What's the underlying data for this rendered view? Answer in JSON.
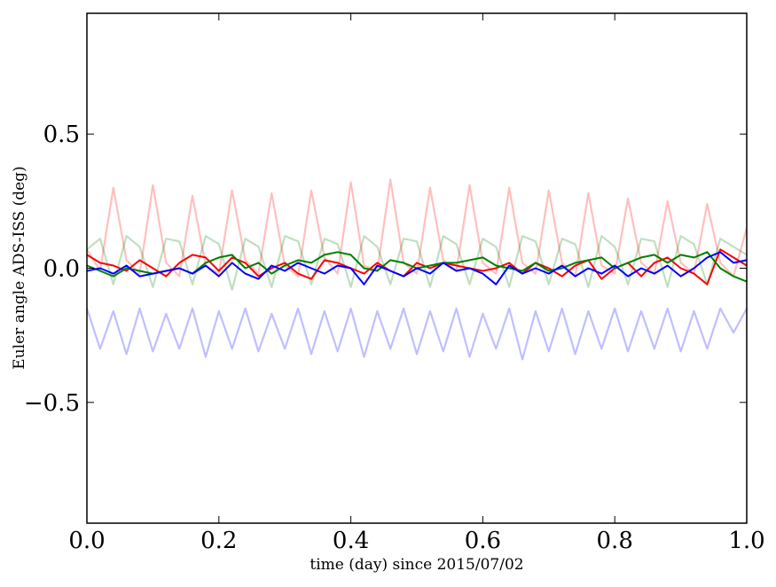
{
  "chart_data": {
    "type": "line",
    "title": "",
    "xlabel": "time (day) since 2015/07/02",
    "ylabel": "Euler angle ADS-ISS (deg)",
    "xlim": [
      0.0,
      1.0
    ],
    "ylim": [
      -0.95,
      0.95
    ],
    "x_ticks": [
      0.0,
      0.2,
      0.4,
      0.6,
      0.8,
      1.0
    ],
    "x_tick_labels": [
      "0.0",
      "0.2",
      "0.4",
      "0.6",
      "0.8",
      "1.0"
    ],
    "y_ticks": [
      -0.5,
      0.0,
      0.5
    ],
    "y_tick_labels": [
      "−0.5",
      "0.0",
      "0.5"
    ],
    "grid": false,
    "legend": "none",
    "x": [
      0.0,
      0.02,
      0.04,
      0.06,
      0.08,
      0.1,
      0.12,
      0.14,
      0.16,
      0.18,
      0.2,
      0.22,
      0.24,
      0.26,
      0.28,
      0.3,
      0.32,
      0.34,
      0.36,
      0.38,
      0.4,
      0.42,
      0.44,
      0.46,
      0.48,
      0.5,
      0.52,
      0.54,
      0.56,
      0.58,
      0.6,
      0.62,
      0.64,
      0.66,
      0.68,
      0.7,
      0.72,
      0.74,
      0.76,
      0.78,
      0.8,
      0.82,
      0.84,
      0.86,
      0.88,
      0.9,
      0.92,
      0.94,
      0.96,
      0.98,
      1.0
    ],
    "series": [
      {
        "color": "#ff0000",
        "alpha": 0.25,
        "values": [
          0.07,
          -0.01,
          0.3,
          0.03,
          -0.02,
          0.31,
          0.02,
          -0.03,
          0.27,
          0.01,
          -0.02,
          0.29,
          0.03,
          -0.02,
          0.28,
          0.01,
          -0.03,
          0.29,
          0.04,
          -0.02,
          0.32,
          0.01,
          -0.01,
          0.33,
          0.02,
          -0.02,
          0.3,
          0.03,
          -0.01,
          0.31,
          0.02,
          -0.02,
          0.3,
          0.02,
          -0.02,
          0.29,
          0.02,
          -0.03,
          0.28,
          0.01,
          -0.02,
          0.26,
          0.02,
          -0.02,
          0.25,
          0.02,
          -0.02,
          0.24,
          0.02,
          -0.03,
          0.15
        ]
      },
      {
        "color": "#008000",
        "alpha": 0.25,
        "values": [
          0.07,
          0.11,
          -0.06,
          0.12,
          0.08,
          -0.07,
          0.11,
          0.1,
          -0.06,
          0.12,
          0.09,
          -0.08,
          0.11,
          0.08,
          -0.07,
          0.12,
          0.1,
          -0.06,
          0.11,
          0.09,
          -0.07,
          0.12,
          0.08,
          -0.06,
          0.11,
          0.1,
          -0.07,
          0.12,
          0.09,
          -0.06,
          0.11,
          0.08,
          -0.07,
          0.12,
          0.1,
          -0.06,
          0.11,
          0.09,
          -0.07,
          0.12,
          0.08,
          -0.06,
          0.11,
          0.1,
          -0.07,
          0.12,
          0.09,
          -0.06,
          0.11,
          0.08,
          0.05
        ]
      },
      {
        "color": "#0000ff",
        "alpha": 0.25,
        "values": [
          -0.15,
          -0.3,
          -0.16,
          -0.32,
          -0.15,
          -0.31,
          -0.17,
          -0.3,
          -0.15,
          -0.33,
          -0.16,
          -0.3,
          -0.15,
          -0.31,
          -0.17,
          -0.3,
          -0.15,
          -0.32,
          -0.16,
          -0.31,
          -0.15,
          -0.33,
          -0.16,
          -0.3,
          -0.15,
          -0.32,
          -0.16,
          -0.31,
          -0.15,
          -0.33,
          -0.17,
          -0.3,
          -0.15,
          -0.34,
          -0.16,
          -0.31,
          -0.15,
          -0.32,
          -0.16,
          -0.3,
          -0.15,
          -0.31,
          -0.16,
          -0.3,
          -0.15,
          -0.31,
          -0.16,
          -0.3,
          -0.15,
          -0.24,
          -0.15
        ]
      },
      {
        "color": "#ff0000",
        "alpha": 1.0,
        "values": [
          0.05,
          0.02,
          0.01,
          -0.01,
          0.03,
          0.0,
          -0.03,
          0.02,
          0.05,
          0.04,
          -0.01,
          0.04,
          0.02,
          -0.03,
          0.0,
          0.02,
          -0.02,
          -0.04,
          0.03,
          0.02,
          0.0,
          -0.02,
          0.02,
          -0.01,
          -0.03,
          0.02,
          0.0,
          0.02,
          0.01,
          0.0,
          -0.01,
          0.0,
          0.02,
          -0.02,
          0.02,
          0.0,
          -0.03,
          0.01,
          0.03,
          -0.04,
          0.0,
          0.02,
          -0.03,
          0.02,
          0.04,
          0.0,
          -0.02,
          -0.06,
          0.07,
          0.04,
          0.01
        ]
      },
      {
        "color": "#008000",
        "alpha": 1.0,
        "values": [
          0.01,
          -0.01,
          -0.03,
          0.0,
          -0.01,
          -0.02,
          -0.01,
          0.0,
          -0.02,
          0.02,
          0.04,
          0.05,
          0.0,
          0.02,
          -0.02,
          0.01,
          0.03,
          0.02,
          0.05,
          0.06,
          0.05,
          0.0,
          -0.01,
          0.03,
          0.02,
          0.0,
          0.01,
          0.02,
          0.02,
          0.03,
          0.04,
          0.01,
          0.0,
          -0.01,
          0.02,
          -0.01,
          0.0,
          0.02,
          0.03,
          0.04,
          0.0,
          0.02,
          0.04,
          0.05,
          0.02,
          0.05,
          0.04,
          0.06,
          0.0,
          -0.03,
          -0.05
        ]
      },
      {
        "color": "#0000ff",
        "alpha": 1.0,
        "values": [
          -0.01,
          0.0,
          -0.02,
          0.01,
          -0.03,
          -0.02,
          -0.01,
          0.0,
          -0.02,
          0.01,
          -0.03,
          0.02,
          -0.02,
          -0.04,
          0.01,
          -0.01,
          0.02,
          0.0,
          -0.02,
          0.01,
          0.0,
          -0.06,
          0.01,
          -0.01,
          -0.03,
          0.0,
          -0.02,
          0.02,
          -0.01,
          0.0,
          -0.02,
          -0.06,
          0.01,
          -0.02,
          0.0,
          -0.02,
          0.01,
          -0.03,
          0.0,
          -0.02,
          0.01,
          -0.03,
          0.0,
          -0.02,
          0.01,
          -0.03,
          0.0,
          0.04,
          0.06,
          0.02,
          0.03
        ]
      }
    ]
  }
}
